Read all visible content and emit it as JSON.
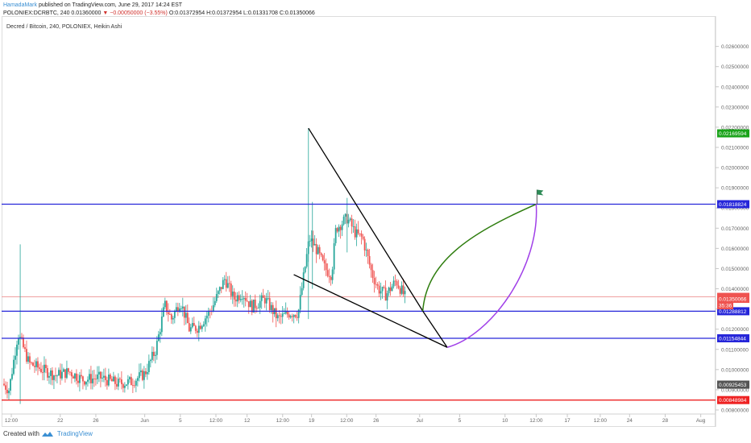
{
  "header": {
    "author": "HamadaMark",
    "published": "published on TradingView.com, June 29, 2017 14:24 EST",
    "symbol_line_prefix": "POLONIEX:DCRBTC, 240  0.01360000",
    "change": "▼ −0.00050000 (−3.55%)",
    "ohlc": "O:0.01372954  H:0.01372954  L:0.01331708  C:0.01350066"
  },
  "chart_title": "Decred / Bitcoin, 240, POLONIEX, Heikin Ashi",
  "footer": {
    "created_with": "Created with",
    "brand": "TradingView"
  },
  "colors": {
    "up": "#26a69a",
    "down": "#ef5350",
    "hline": "#2626d9",
    "support": "#ee2222",
    "triangle": "#000000",
    "green_path": "#2e7d0e",
    "purple_path": "#a040e8",
    "flag": "#2e8b57"
  },
  "chart_data": {
    "type": "candlestick",
    "instrument": "POLONIEX:DCRBTC",
    "style": "Heikin Ashi",
    "y_range": [
      0.0078,
      0.0275
    ],
    "y_ticks": [
      "0.02600000",
      "0.02500000",
      "0.02400000",
      "0.02300000",
      "0.02200000",
      "0.02100000",
      "0.02000000",
      "0.01900000",
      "0.01800000",
      "0.01700000",
      "0.01600000",
      "0.01500000",
      "0.01400000",
      "0.01300000",
      "0.01200000",
      "0.01100000",
      "0.01000000",
      "0.00900000",
      "0.00800000"
    ],
    "x_labels": [
      {
        "label": "12:00",
        "t": 0.02
      },
      {
        "label": "22",
        "t": 0.13
      },
      {
        "label": "26",
        "t": 0.21
      },
      {
        "label": "Jun",
        "t": 0.32
      },
      {
        "label": "5",
        "t": 0.4
      },
      {
        "label": "12:00",
        "t": 0.48
      },
      {
        "label": "12",
        "t": 0.55
      },
      {
        "label": "12:00",
        "t": 0.63
      },
      {
        "label": "19",
        "t": 0.695
      },
      {
        "label": "12:00",
        "t": 0.774
      },
      {
        "label": "26",
        "t": 0.84
      },
      {
        "label": "Jul",
        "t": 0.938
      },
      {
        "label": "5",
        "t": 1.028
      },
      {
        "label": "10",
        "t": 1.13
      },
      {
        "label": "12:00",
        "t": 1.2
      },
      {
        "label": "17",
        "t": 1.27
      },
      {
        "label": "12:00",
        "t": 1.344
      },
      {
        "label": "24",
        "t": 1.41
      },
      {
        "label": "28",
        "t": 1.49
      },
      {
        "label": "Aug",
        "t": 1.57
      }
    ],
    "horizontal_levels": [
      {
        "value": 0.01818824,
        "label": "0.01818824",
        "color": "#2626d9"
      },
      {
        "value": 0.01288812,
        "label": "0.01288812",
        "color": "#2626d9"
      },
      {
        "value": 0.01154844,
        "label": "0.01154844",
        "color": "#2626d9"
      },
      {
        "value": 0.00848984,
        "label": "0.00848984",
        "color": "#ee2222"
      }
    ],
    "price_badges": [
      {
        "value": 0.02169594,
        "label": "0.02169594",
        "color": "#1aa31a"
      },
      {
        "value": 0.0136,
        "label": "0.01360000",
        "color": "#ef5350"
      },
      {
        "value": 0.01350066,
        "label": "0.01350066",
        "color": "#ef5350"
      },
      {
        "value": 0.01318,
        "label": "35:36",
        "color": "#ef5350"
      },
      {
        "value": 0.00925453,
        "label": "0.00925453",
        "color": "#555555"
      }
    ],
    "close_line": {
      "value": 0.0136,
      "color": "#f0a0a0"
    },
    "price_path": [
      [
        0.0,
        0.0093
      ],
      [
        0.015,
        0.009
      ],
      [
        0.035,
        0.0118
      ],
      [
        0.06,
        0.0103
      ],
      [
        0.09,
        0.01
      ],
      [
        0.12,
        0.0097
      ],
      [
        0.15,
        0.0099
      ],
      [
        0.18,
        0.0095
      ],
      [
        0.22,
        0.0096
      ],
      [
        0.26,
        0.0093
      ],
      [
        0.29,
        0.0094
      ],
      [
        0.32,
        0.0098
      ],
      [
        0.345,
        0.011
      ],
      [
        0.365,
        0.0132
      ],
      [
        0.38,
        0.0125
      ],
      [
        0.4,
        0.0134
      ],
      [
        0.42,
        0.012
      ],
      [
        0.44,
        0.0121
      ],
      [
        0.47,
        0.013
      ],
      [
        0.5,
        0.0145
      ],
      [
        0.52,
        0.0135
      ],
      [
        0.54,
        0.0138
      ],
      [
        0.56,
        0.0131
      ],
      [
        0.59,
        0.0135
      ],
      [
        0.62,
        0.0125
      ],
      [
        0.645,
        0.0128
      ],
      [
        0.665,
        0.0128
      ],
      [
        0.69,
        0.0165
      ],
      [
        0.705,
        0.016
      ],
      [
        0.725,
        0.015
      ],
      [
        0.74,
        0.0147
      ],
      [
        0.75,
        0.017
      ],
      [
        0.775,
        0.0175
      ],
      [
        0.795,
        0.0167
      ],
      [
        0.81,
        0.0165
      ],
      [
        0.83,
        0.0148
      ],
      [
        0.845,
        0.014
      ],
      [
        0.862,
        0.0137
      ],
      [
        0.885,
        0.0144
      ],
      [
        0.905,
        0.0136
      ]
    ],
    "drawings": {
      "triangle_upper": [
        [
          0.688,
          0.02195
        ],
        [
          0.945,
          0.0129
        ]
      ],
      "triangle_lower": [
        [
          0.655,
          0.0147
        ],
        [
          1.0,
          0.0111
        ]
      ],
      "triangle_apex": [
        [
          0.945,
          0.0129
        ],
        [
          1.0,
          0.0111
        ]
      ],
      "green_target_path": {
        "from": [
          0.945,
          0.0129
        ],
        "to": [
          1.2,
          0.01818824
        ]
      },
      "purple_target_path": {
        "from": [
          1.0,
          0.0111
        ],
        "to": [
          1.2,
          0.01818824
        ]
      },
      "target_flag": [
        1.2,
        0.01818824
      ]
    }
  }
}
